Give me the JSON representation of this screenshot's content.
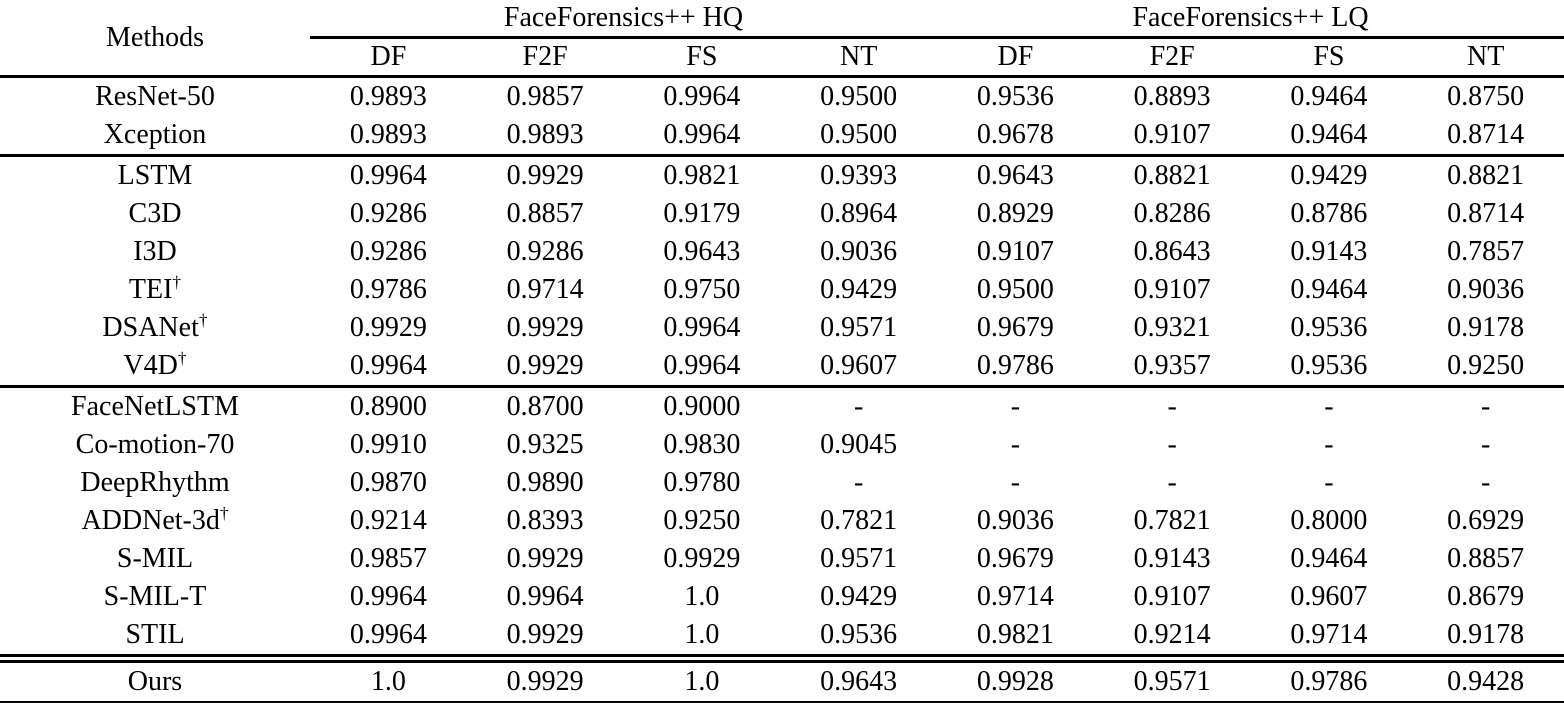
{
  "page": {
    "background_color": "#ffffff",
    "text_color": "#000000"
  },
  "table": {
    "methods_header": "Methods",
    "group_headers": [
      "FaceForensics++ HQ",
      "FaceForensics++ LQ"
    ],
    "sub_headers": [
      "DF",
      "F2F",
      "FS",
      "NT",
      "DF",
      "F2F",
      "FS",
      "NT"
    ],
    "dagger_symbol": "†",
    "missing_value": "-",
    "groups": [
      {
        "rows": [
          {
            "method": "ResNet-50",
            "dagger": false,
            "values": [
              "0.9893",
              "0.9857",
              "0.9964",
              "0.9500",
              "0.9536",
              "0.8893",
              "0.9464",
              "0.8750"
            ],
            "bold": [
              false,
              false,
              false,
              false,
              false,
              false,
              false,
              false
            ]
          },
          {
            "method": "Xception",
            "dagger": false,
            "values": [
              "0.9893",
              "0.9893",
              "0.9964",
              "0.9500",
              "0.9678",
              "0.9107",
              "0.9464",
              "0.8714"
            ],
            "bold": [
              false,
              false,
              false,
              false,
              false,
              false,
              false,
              false
            ]
          }
        ]
      },
      {
        "rows": [
          {
            "method": "LSTM",
            "dagger": false,
            "values": [
              "0.9964",
              "0.9929",
              "0.9821",
              "0.9393",
              "0.9643",
              "0.8821",
              "0.9429",
              "0.8821"
            ],
            "bold": [
              false,
              false,
              false,
              false,
              false,
              false,
              false,
              false
            ]
          },
          {
            "method": "C3D",
            "dagger": false,
            "values": [
              "0.9286",
              "0.8857",
              "0.9179",
              "0.8964",
              "0.8929",
              "0.8286",
              "0.8786",
              "0.8714"
            ],
            "bold": [
              false,
              false,
              false,
              false,
              false,
              false,
              false,
              false
            ]
          },
          {
            "method": "I3D",
            "dagger": false,
            "values": [
              "0.9286",
              "0.9286",
              "0.9643",
              "0.9036",
              "0.9107",
              "0.8643",
              "0.9143",
              "0.7857"
            ],
            "bold": [
              false,
              false,
              false,
              false,
              false,
              false,
              false,
              false
            ]
          },
          {
            "method": "TEI",
            "dagger": true,
            "values": [
              "0.9786",
              "0.9714",
              "0.9750",
              "0.9429",
              "0.9500",
              "0.9107",
              "0.9464",
              "0.9036"
            ],
            "bold": [
              false,
              false,
              false,
              false,
              false,
              false,
              false,
              false
            ]
          },
          {
            "method": "DSANet",
            "dagger": true,
            "values": [
              "0.9929",
              "0.9929",
              "0.9964",
              "0.9571",
              "0.9679",
              "0.9321",
              "0.9536",
              "0.9178"
            ],
            "bold": [
              false,
              false,
              false,
              false,
              false,
              false,
              false,
              false
            ]
          },
          {
            "method": "V4D",
            "dagger": true,
            "values": [
              "0.9964",
              "0.9929",
              "0.9964",
              "0.9607",
              "0.9786",
              "0.9357",
              "0.9536",
              "0.9250"
            ],
            "bold": [
              false,
              false,
              false,
              false,
              false,
              false,
              false,
              false
            ]
          }
        ]
      },
      {
        "rows": [
          {
            "method": "FaceNetLSTM",
            "dagger": false,
            "values": [
              "0.8900",
              "0.8700",
              "0.9000",
              "-",
              "-",
              "-",
              "-",
              "-"
            ],
            "bold": [
              false,
              false,
              false,
              false,
              false,
              false,
              false,
              false
            ]
          },
          {
            "method": "Co-motion-70",
            "dagger": false,
            "values": [
              "0.9910",
              "0.9325",
              "0.9830",
              "0.9045",
              "-",
              "-",
              "-",
              "-"
            ],
            "bold": [
              false,
              false,
              false,
              false,
              false,
              false,
              false,
              false
            ]
          },
          {
            "method": "DeepRhythm",
            "dagger": false,
            "values": [
              "0.9870",
              "0.9890",
              "0.9780",
              "-",
              "-",
              "-",
              "-",
              "-"
            ],
            "bold": [
              false,
              false,
              false,
              false,
              false,
              false,
              false,
              false
            ]
          },
          {
            "method": "ADDNet-3d",
            "dagger": true,
            "values": [
              "0.9214",
              "0.8393",
              "0.9250",
              "0.7821",
              "0.9036",
              "0.7821",
              "0.8000",
              "0.6929"
            ],
            "bold": [
              false,
              false,
              false,
              false,
              false,
              false,
              false,
              false
            ]
          },
          {
            "method": "S-MIL",
            "dagger": false,
            "values": [
              "0.9857",
              "0.9929",
              "0.9929",
              "0.9571",
              "0.9679",
              "0.9143",
              "0.9464",
              "0.8857"
            ],
            "bold": [
              false,
              false,
              false,
              false,
              false,
              false,
              false,
              false
            ]
          },
          {
            "method": "S-MIL-T",
            "dagger": false,
            "values": [
              "0.9964",
              "0.9964",
              "1.0",
              "0.9429",
              "0.9714",
              "0.9107",
              "0.9607",
              "0.8679"
            ],
            "bold": [
              false,
              true,
              false,
              false,
              false,
              false,
              false,
              false
            ]
          },
          {
            "method": "STIL",
            "dagger": false,
            "values": [
              "0.9964",
              "0.9929",
              "1.0",
              "0.9536",
              "0.9821",
              "0.9214",
              "0.9714",
              "0.9178"
            ],
            "bold": [
              false,
              false,
              false,
              false,
              false,
              false,
              false,
              false
            ]
          }
        ]
      },
      {
        "rows": [
          {
            "method": "Ours",
            "dagger": false,
            "values": [
              "1.0",
              "0.9929",
              "1.0",
              "0.9643",
              "0.9928",
              "0.9571",
              "0.9786",
              "0.9428"
            ],
            "bold": [
              true,
              false,
              true,
              true,
              true,
              true,
              true,
              true
            ]
          }
        ]
      }
    ]
  }
}
